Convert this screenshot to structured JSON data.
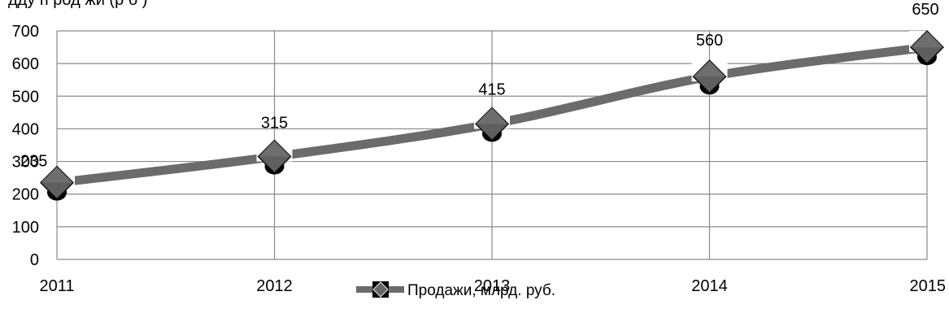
{
  "chart_data": {
    "type": "line",
    "title_fragment": "дду п род жи (р б )",
    "categories": [
      "2011",
      "2012",
      "2013",
      "2014",
      "2015"
    ],
    "series": [
      {
        "name": "Продажи, млрд. руб.",
        "values": [
          235,
          315,
          415,
          560,
          650
        ],
        "data_labels": [
          "235",
          "315",
          "415",
          "560",
          "650"
        ],
        "color": "#6b6b6b",
        "marker": "diamond"
      }
    ],
    "ylim": [
      0,
      700
    ],
    "yticks": [
      0,
      100,
      200,
      300,
      400,
      500,
      600,
      700
    ],
    "ytick_labels": [
      "0",
      "100",
      "200",
      "300",
      "400",
      "500",
      "600",
      "700"
    ],
    "grid": true,
    "legend": "bottom",
    "xlabel": "",
    "ylabel": ""
  }
}
